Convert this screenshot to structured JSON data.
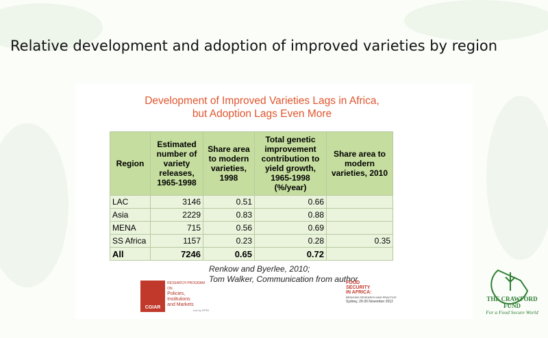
{
  "slide_title": "Relative development and adoption of improved varieties by region",
  "figure": {
    "title_lines": [
      "Development of Improved Varieties Lags in Africa,",
      "but Adoption Lags Even More"
    ],
    "table": {
      "headers": [
        "Region",
        "Estimated number of variety releases, 1965-1998",
        "Share area to modern varieties, 1998",
        "Total genetic improvement contribution to yield growth, 1965-1998 (%/year)",
        "Share area to modern varieties, 2010"
      ],
      "rows": [
        [
          "LAC",
          "3146",
          "0.51",
          "0.66",
          null
        ],
        [
          "Asia",
          "2229",
          "0.83",
          "0.88",
          null
        ],
        [
          "MENA",
          "715",
          "0.56",
          "0.69",
          null
        ],
        [
          "SS Africa",
          "1157",
          "0.23",
          "0.28",
          "0.35"
        ],
        [
          "All",
          "7246",
          "0.65",
          "0.72",
          null
        ]
      ]
    },
    "source_lines": [
      "Renkow and Byerlee, 2010;",
      "Tom Walker, Communication from author"
    ],
    "cgiar_logo": {
      "name": "CGIAR",
      "program": "RESEARCH PROGRAM ON",
      "lines": [
        "Policies,",
        "Institutions",
        "and Markets"
      ],
      "led": "Led by IFPRI"
    },
    "fsa_logo": {
      "lines": [
        "FOOD",
        "SECURITY",
        "IN AFRICA:"
      ],
      "sub": "BRIDGING RESEARCH AND PRACTICE",
      "date": "Sydney, 29-30 November 2012"
    }
  },
  "crawford_logo": {
    "name": "THE CRAWFORD FUND",
    "tagline": "For a Food Secure World"
  }
}
